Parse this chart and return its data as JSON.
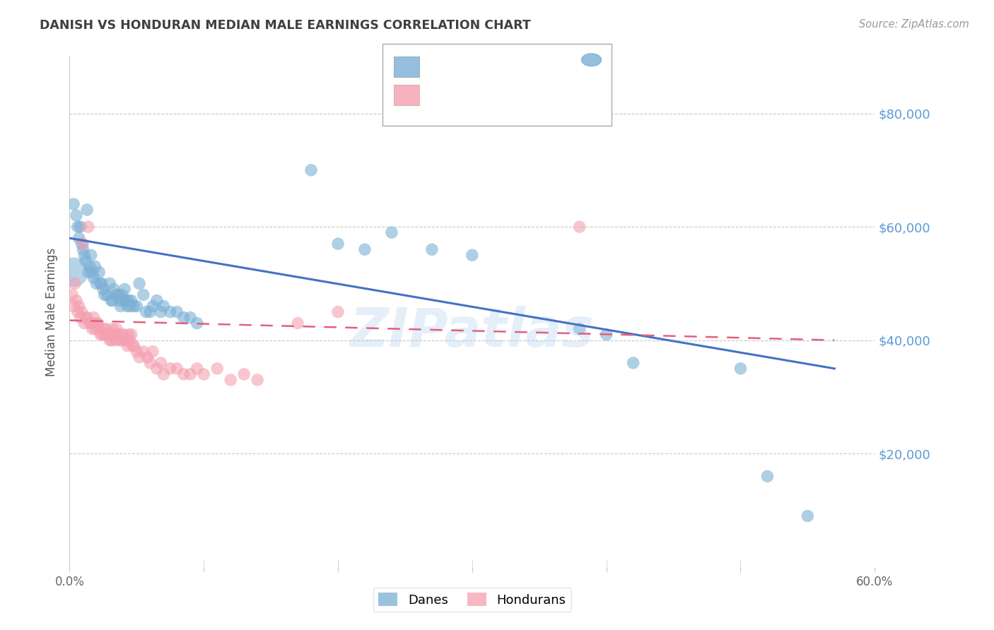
{
  "title": "DANISH VS HONDURAN MEDIAN MALE EARNINGS CORRELATION CHART",
  "source": "Source: ZipAtlas.com",
  "ylabel": "Median Male Earnings",
  "xlabel_ticks": [
    "0.0%",
    "",
    "",
    "",
    "",
    "",
    "",
    "",
    "",
    "",
    "",
    "",
    "60.0%"
  ],
  "xlim": [
    0.0,
    0.6
  ],
  "ylim": [
    0,
    90000
  ],
  "yticks": [
    0,
    20000,
    40000,
    60000,
    80000
  ],
  "ytick_labels": [
    "",
    "$20,000",
    "$40,000",
    "$60,000",
    "$80,000"
  ],
  "watermark": "ZIPatlas",
  "legend_label_blue": "Danes",
  "legend_label_pink": "Hondurans",
  "blue_color": "#7BAFD4",
  "pink_color": "#F4A0B0",
  "line_blue_color": "#4472C4",
  "line_pink_color": "#E06080",
  "grid_color": "#C8C8C8",
  "title_color": "#404040",
  "right_label_color": "#5B9BD5",
  "blue_scatter": [
    [
      0.003,
      64000
    ],
    [
      0.005,
      62000
    ],
    [
      0.006,
      60000
    ],
    [
      0.007,
      58000
    ],
    [
      0.008,
      60000
    ],
    [
      0.009,
      57000
    ],
    [
      0.01,
      56000
    ],
    [
      0.011,
      55000
    ],
    [
      0.012,
      54000
    ],
    [
      0.013,
      63000
    ],
    [
      0.014,
      52000
    ],
    [
      0.015,
      53000
    ],
    [
      0.016,
      55000
    ],
    [
      0.017,
      52000
    ],
    [
      0.018,
      51000
    ],
    [
      0.019,
      53000
    ],
    [
      0.02,
      50000
    ],
    [
      0.022,
      52000
    ],
    [
      0.023,
      50000
    ],
    [
      0.024,
      50000
    ],
    [
      0.025,
      49000
    ],
    [
      0.026,
      48000
    ],
    [
      0.028,
      48000
    ],
    [
      0.03,
      50000
    ],
    [
      0.031,
      47000
    ],
    [
      0.032,
      47000
    ],
    [
      0.033,
      49000
    ],
    [
      0.035,
      48000
    ],
    [
      0.036,
      48000
    ],
    [
      0.037,
      47000
    ],
    [
      0.038,
      46000
    ],
    [
      0.039,
      48000
    ],
    [
      0.04,
      47000
    ],
    [
      0.041,
      49000
    ],
    [
      0.042,
      47000
    ],
    [
      0.043,
      46000
    ],
    [
      0.044,
      47000
    ],
    [
      0.045,
      46000
    ],
    [
      0.046,
      47000
    ],
    [
      0.048,
      46000
    ],
    [
      0.05,
      46000
    ],
    [
      0.052,
      50000
    ],
    [
      0.055,
      48000
    ],
    [
      0.057,
      45000
    ],
    [
      0.06,
      45000
    ],
    [
      0.062,
      46000
    ],
    [
      0.065,
      47000
    ],
    [
      0.068,
      45000
    ],
    [
      0.07,
      46000
    ],
    [
      0.075,
      45000
    ],
    [
      0.08,
      45000
    ],
    [
      0.085,
      44000
    ],
    [
      0.09,
      44000
    ],
    [
      0.095,
      43000
    ],
    [
      0.18,
      70000
    ],
    [
      0.2,
      57000
    ],
    [
      0.22,
      56000
    ],
    [
      0.24,
      59000
    ],
    [
      0.27,
      56000
    ],
    [
      0.3,
      55000
    ],
    [
      0.38,
      42000
    ],
    [
      0.4,
      41000
    ],
    [
      0.42,
      36000
    ],
    [
      0.5,
      35000
    ],
    [
      0.52,
      16000
    ],
    [
      0.55,
      9000
    ]
  ],
  "blue_large_scatter": [
    [
      0.003,
      52000
    ]
  ],
  "pink_scatter": [
    [
      0.002,
      48000
    ],
    [
      0.003,
      46000
    ],
    [
      0.004,
      50000
    ],
    [
      0.005,
      47000
    ],
    [
      0.006,
      45000
    ],
    [
      0.007,
      46000
    ],
    [
      0.008,
      44000
    ],
    [
      0.009,
      45000
    ],
    [
      0.01,
      57000
    ],
    [
      0.011,
      43000
    ],
    [
      0.012,
      44000
    ],
    [
      0.013,
      44000
    ],
    [
      0.014,
      60000
    ],
    [
      0.015,
      43000
    ],
    [
      0.016,
      43000
    ],
    [
      0.017,
      42000
    ],
    [
      0.018,
      44000
    ],
    [
      0.019,
      42000
    ],
    [
      0.02,
      43000
    ],
    [
      0.021,
      43000
    ],
    [
      0.022,
      42000
    ],
    [
      0.023,
      41000
    ],
    [
      0.024,
      41000
    ],
    [
      0.025,
      42000
    ],
    [
      0.026,
      41000
    ],
    [
      0.027,
      42000
    ],
    [
      0.028,
      41000
    ],
    [
      0.029,
      41000
    ],
    [
      0.03,
      40000
    ],
    [
      0.031,
      40000
    ],
    [
      0.032,
      42000
    ],
    [
      0.033,
      41000
    ],
    [
      0.034,
      40000
    ],
    [
      0.035,
      42000
    ],
    [
      0.036,
      41000
    ],
    [
      0.037,
      40000
    ],
    [
      0.038,
      40000
    ],
    [
      0.039,
      41000
    ],
    [
      0.04,
      41000
    ],
    [
      0.041,
      40000
    ],
    [
      0.042,
      40000
    ],
    [
      0.043,
      39000
    ],
    [
      0.044,
      41000
    ],
    [
      0.045,
      40000
    ],
    [
      0.046,
      41000
    ],
    [
      0.047,
      39000
    ],
    [
      0.048,
      39000
    ],
    [
      0.05,
      38000
    ],
    [
      0.052,
      37000
    ],
    [
      0.055,
      38000
    ],
    [
      0.058,
      37000
    ],
    [
      0.06,
      36000
    ],
    [
      0.062,
      38000
    ],
    [
      0.065,
      35000
    ],
    [
      0.068,
      36000
    ],
    [
      0.07,
      34000
    ],
    [
      0.075,
      35000
    ],
    [
      0.08,
      35000
    ],
    [
      0.085,
      34000
    ],
    [
      0.09,
      34000
    ],
    [
      0.095,
      35000
    ],
    [
      0.1,
      34000
    ],
    [
      0.11,
      35000
    ],
    [
      0.12,
      33000
    ],
    [
      0.13,
      34000
    ],
    [
      0.14,
      33000
    ],
    [
      0.17,
      43000
    ],
    [
      0.2,
      45000
    ],
    [
      0.38,
      60000
    ]
  ],
  "blue_trendline": [
    [
      0.0,
      58000
    ],
    [
      0.57,
      35000
    ]
  ],
  "pink_trendline": [
    [
      0.0,
      43500
    ],
    [
      0.57,
      40000
    ]
  ],
  "background_color": "#FFFFFF"
}
